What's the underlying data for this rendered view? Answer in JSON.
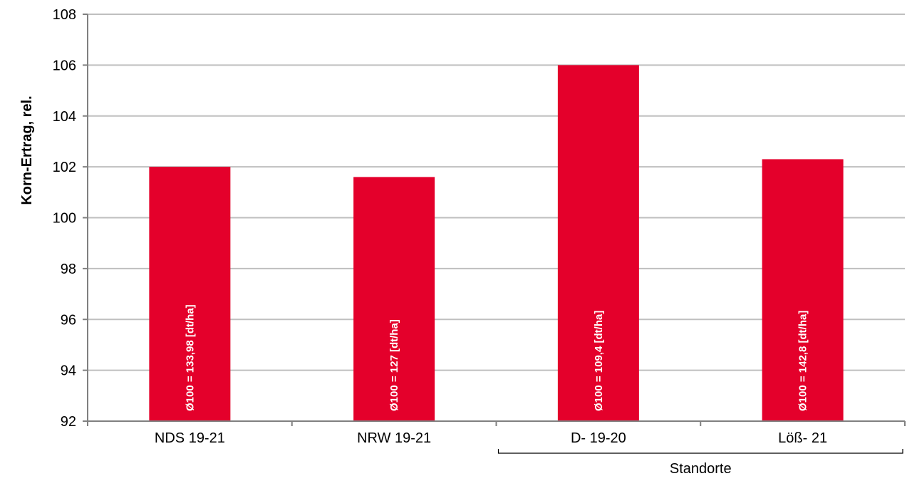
{
  "chart_data": {
    "type": "bar",
    "title": "",
    "xlabel": "",
    "ylabel": "Korn-Ertrag, rel.",
    "ylim": [
      92,
      108
    ],
    "ytick_step": 2,
    "yticks": [
      "92",
      "94",
      "96",
      "98",
      "100",
      "102",
      "104",
      "106",
      "108"
    ],
    "grid": true,
    "categories": [
      "NDS 19-21",
      "NRW 19-21",
      "D- 19-20",
      "Löß- 21"
    ],
    "values": [
      102.0,
      101.6,
      106.0,
      102.3
    ],
    "bar_labels": [
      "Ø100 = 133,98 [dt/ha]",
      "Ø100 = 127 [dt/ha]",
      "Ø100 = 109,4 [dt/ha]",
      "Ø100 = 142,8 [dt/ha]"
    ],
    "group_annotation": {
      "label": "Standorte",
      "categories": [
        "D- 19-20",
        "Löß- 21"
      ]
    },
    "colors": {
      "bar": "#E4002B",
      "grid": "#BFBFBF",
      "axis": "#808080",
      "text": "#000000",
      "bar_text": "#FFFFFF"
    }
  }
}
